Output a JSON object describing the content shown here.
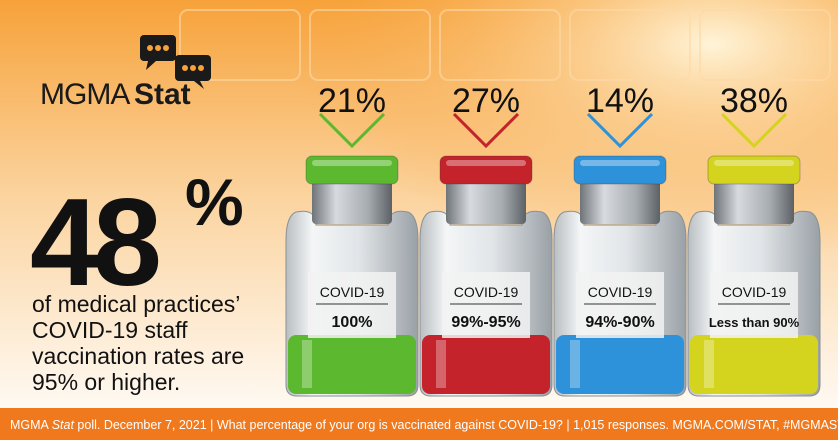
{
  "logo": {
    "prefix": "MGMA",
    "suffix": "Stat"
  },
  "headline": {
    "number": "48",
    "unit": "%"
  },
  "description": [
    "of medical practices’",
    "COVID-19 staff",
    "vaccination rates are",
    "95% or higher."
  ],
  "vials": [
    {
      "percent": "21%",
      "label": "COVID-19",
      "range": "100%",
      "color": "#5cb82e"
    },
    {
      "percent": "27%",
      "label": "COVID-19",
      "range": "99%-95%",
      "color": "#c4232b"
    },
    {
      "percent": "14%",
      "label": "COVID-19",
      "range": "94%-90%",
      "color": "#2d92da"
    },
    {
      "percent": "38%",
      "label": "COVID-19",
      "range": "Less than 90%",
      "color": "#d4d41e"
    }
  ],
  "footer": {
    "brand": "MGMA",
    "brand_italic": "Stat",
    "text": "poll. December 7, 2021  |  What percentage of your org is vaccinated against COVID-19?  |  1,015 responses. MGMA.COM/STAT, #MGMASTAT"
  }
}
